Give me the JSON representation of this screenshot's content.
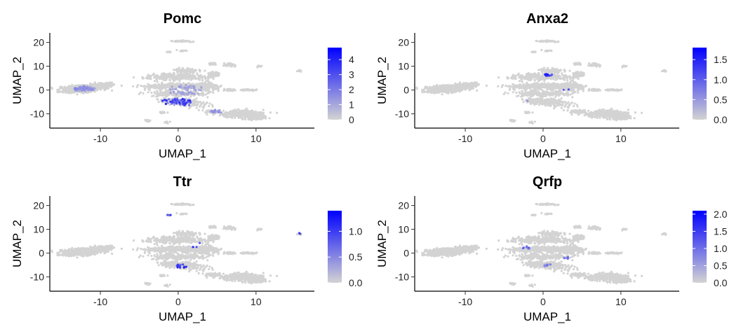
{
  "figure": {
    "background": "#ffffff"
  },
  "chart_data": [
    {
      "type": "scatter",
      "title": "Pomc",
      "xlabel": "UMAP_1",
      "ylabel": "UMAP_2",
      "xlim": [
        -16.5,
        17.5
      ],
      "ylim": [
        -16,
        24
      ],
      "xticks": [
        -10,
        0,
        10
      ],
      "yticks": [
        -10,
        0,
        10,
        20
      ],
      "grid": false,
      "legend": "right",
      "colorbar": {
        "min": 0,
        "max": 4.8,
        "ticks": [
          0,
          1,
          2,
          3,
          4
        ],
        "low_color": "#d3d3d3",
        "high_color": "#0000ff"
      },
      "high_regions": [
        {
          "x": 0,
          "y": -5,
          "value": 3.6,
          "spread": 2.2
        },
        {
          "x": -12,
          "y": 0.5,
          "value": 1.6,
          "spread": 1.4
        },
        {
          "x": 5,
          "y": -9,
          "value": 1.5,
          "spread": 1.3
        },
        {
          "x": 1,
          "y": 0,
          "value": 1.2,
          "spread": 2.5
        }
      ]
    },
    {
      "type": "scatter",
      "title": "Anxa2",
      "xlabel": "UMAP_1",
      "ylabel": "UMAP_2",
      "xlim": [
        -16.5,
        17.5
      ],
      "ylim": [
        -16,
        24
      ],
      "xticks": [
        -10,
        0,
        10
      ],
      "yticks": [
        -10,
        0,
        10,
        20
      ],
      "grid": false,
      "legend": "right",
      "colorbar": {
        "min": 0,
        "max": 1.8,
        "ticks": [
          0.0,
          0.5,
          1.0,
          1.5
        ],
        "low_color": "#d3d3d3",
        "high_color": "#0000ff"
      },
      "high_regions": [
        {
          "x": 0.5,
          "y": 6.5,
          "value": 1.5,
          "spread": 0.8
        },
        {
          "x": -2.5,
          "y": -4.5,
          "value": 1.3,
          "spread": 0.8
        },
        {
          "x": 3,
          "y": -0.5,
          "value": 1.1,
          "spread": 0.8
        },
        {
          "x": 8,
          "y": -8,
          "value": 1.2,
          "spread": 0.7
        }
      ]
    },
    {
      "type": "scatter",
      "title": "Ttr",
      "xlabel": "UMAP_1",
      "ylabel": "UMAP_2",
      "xlim": [
        -16.5,
        17.5
      ],
      "ylim": [
        -16,
        24
      ],
      "xticks": [
        -10,
        0,
        10
      ],
      "yticks": [
        -10,
        0,
        10,
        20
      ],
      "grid": false,
      "legend": "right",
      "colorbar": {
        "min": 0,
        "max": 1.4,
        "ticks": [
          0.0,
          0.5,
          1.0
        ],
        "low_color": "#d3d3d3",
        "high_color": "#0000ff"
      },
      "high_regions": [
        {
          "x": 0.5,
          "y": -5.5,
          "value": 1.2,
          "spread": 1.0
        },
        {
          "x": 2.5,
          "y": 3.5,
          "value": 1.1,
          "spread": 1.2
        },
        {
          "x": -1,
          "y": 16,
          "value": 1.0,
          "spread": 0.6
        },
        {
          "x": 15.5,
          "y": 8.5,
          "value": 1.0,
          "spread": 0.5
        }
      ]
    },
    {
      "type": "scatter",
      "title": "Qrfp",
      "xlabel": "UMAP_1",
      "ylabel": "UMAP_2",
      "xlim": [
        -16.5,
        17.5
      ],
      "ylim": [
        -16,
        24
      ],
      "xticks": [
        -10,
        0,
        10
      ],
      "yticks": [
        -10,
        0,
        10,
        20
      ],
      "grid": false,
      "legend": "right",
      "colorbar": {
        "min": 0,
        "max": 2.1,
        "ticks": [
          0.0,
          0.5,
          1.0,
          1.5,
          2.0
        ],
        "low_color": "#d3d3d3",
        "high_color": "#0000ff"
      },
      "high_regions": [
        {
          "x": -2,
          "y": 2.5,
          "value": 1.4,
          "spread": 0.8
        },
        {
          "x": 3,
          "y": -2,
          "value": 1.1,
          "spread": 0.8
        },
        {
          "x": 0.5,
          "y": -5,
          "value": 0.9,
          "spread": 0.7
        }
      ]
    }
  ],
  "cell_clusters": [
    {
      "x": -12.5,
      "y": 0.5,
      "sx": 2.6,
      "sy": 1.2,
      "rot": 12,
      "n": 600
    },
    {
      "x": -9.5,
      "y": 2.2,
      "sx": 1.2,
      "sy": 0.8,
      "rot": 0,
      "n": 140
    },
    {
      "x": 0,
      "y": 5.5,
      "sx": 3.5,
      "sy": 1.3,
      "rot": 0,
      "n": 280
    },
    {
      "x": 1,
      "y": 8,
      "sx": 1.5,
      "sy": 1.0,
      "rot": 0,
      "n": 90
    },
    {
      "x": -0.5,
      "y": 1.5,
      "sx": 3.5,
      "sy": 1.2,
      "rot": 0,
      "n": 300
    },
    {
      "x": 0,
      "y": -1.5,
      "sx": 3.2,
      "sy": 1.0,
      "rot": 0,
      "n": 230
    },
    {
      "x": 0.5,
      "y": -5,
      "sx": 2.8,
      "sy": 1.3,
      "rot": -22,
      "n": 260
    },
    {
      "x": 3.5,
      "y": 1.5,
      "sx": 1.8,
      "sy": 1.5,
      "rot": 0,
      "n": 140
    },
    {
      "x": 4.5,
      "y": 6.5,
      "sx": 0.7,
      "sy": 1.1,
      "rot": 0,
      "n": 60
    },
    {
      "x": 6.5,
      "y": 10.5,
      "sx": 0.7,
      "sy": 0.7,
      "rot": 0,
      "n": 45
    },
    {
      "x": 4.5,
      "y": 11,
      "sx": 0.5,
      "sy": 0.5,
      "rot": 0,
      "n": 25
    },
    {
      "x": 9,
      "y": 0,
      "sx": 0.8,
      "sy": 0.3,
      "rot": 0,
      "n": 40
    },
    {
      "x": 6.5,
      "y": 0,
      "sx": 0.8,
      "sy": 0.3,
      "rot": 0,
      "n": 35
    },
    {
      "x": 8,
      "y": -10,
      "sx": 2.5,
      "sy": 1.3,
      "rot": 0,
      "n": 340
    },
    {
      "x": 10,
      "y": -11.5,
      "sx": 1.2,
      "sy": 0.8,
      "rot": 0,
      "n": 120
    },
    {
      "x": 4.5,
      "y": -9,
      "sx": 1.0,
      "sy": 0.6,
      "rot": 0,
      "n": 70
    },
    {
      "x": 0.5,
      "y": 20.5,
      "sx": 1.2,
      "sy": 0.3,
      "rot": 0,
      "n": 45
    },
    {
      "x": 0.5,
      "y": 16.5,
      "sx": 0.5,
      "sy": 0.3,
      "rot": 0,
      "n": 15
    },
    {
      "x": -1.2,
      "y": 16,
      "sx": 0.3,
      "sy": 0.3,
      "rot": 0,
      "n": 10
    },
    {
      "x": 10.5,
      "y": 10,
      "sx": 0.3,
      "sy": 0.3,
      "rot": 0,
      "n": 10
    },
    {
      "x": 15.5,
      "y": 8,
      "sx": 0.3,
      "sy": 0.3,
      "rot": 0,
      "n": 10
    },
    {
      "x": -4,
      "y": -13,
      "sx": 0.4,
      "sy": 0.5,
      "rot": 0,
      "n": 15
    },
    {
      "x": -1.5,
      "y": -13.5,
      "sx": 0.4,
      "sy": 0.5,
      "rot": 0,
      "n": 12
    },
    {
      "x": -2,
      "y": -9.5,
      "sx": 0.5,
      "sy": 0.4,
      "rot": 0,
      "n": 14
    }
  ]
}
